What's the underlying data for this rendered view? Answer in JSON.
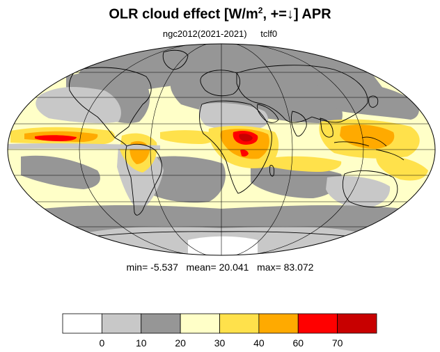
{
  "title": {
    "main": "OLR cloud effect [W/m",
    "sup": "2",
    "tail": ", +=↓]  APR"
  },
  "subtitle": {
    "experiment": "ngc2012(2021-2021)",
    "variable": "tclf0"
  },
  "stats": {
    "min_label": "min=",
    "min_value": "-5.537",
    "mean_label": "mean=",
    "mean_value": "20.041",
    "max_label": "max=",
    "max_value": "83.072"
  },
  "colorbar": {
    "colors": [
      "#ffffff",
      "#c8c8c8",
      "#969696",
      "#ffffc8",
      "#ffe14b",
      "#ffaa00",
      "#ff0000",
      "#c80000"
    ],
    "ticks": [
      "0",
      "10",
      "20",
      "30",
      "40",
      "60",
      "70"
    ]
  },
  "map": {
    "projection": "mollweide",
    "ocean_base_color": "#ffffc8",
    "coastline_color": "#000000",
    "gridline_color": "#000000"
  }
}
